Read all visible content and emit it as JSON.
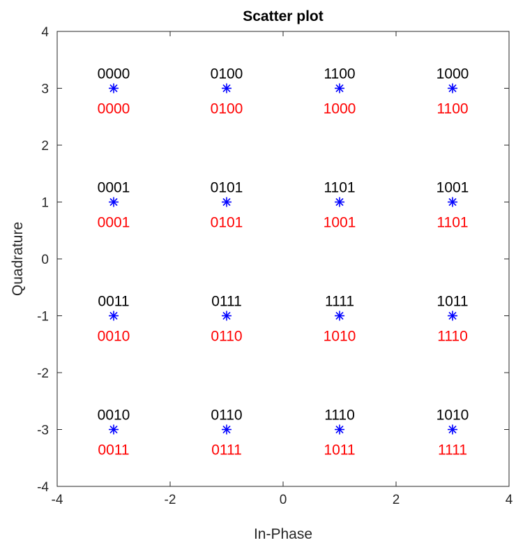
{
  "chart_data": {
    "type": "scatter",
    "title": "Scatter plot",
    "xlabel": "In-Phase",
    "ylabel": "Quadrature",
    "xlim": [
      -4,
      4
    ],
    "ylim": [
      -4,
      4
    ],
    "xticks": [
      "-4",
      "-2",
      "0",
      "2",
      "4"
    ],
    "yticks": [
      "-4",
      "-3",
      "-2",
      "-1",
      "0",
      "1",
      "2",
      "3",
      "4"
    ],
    "xtick_values": [
      -4,
      -2,
      0,
      2,
      4
    ],
    "ytick_values": [
      -4,
      -3,
      -2,
      -1,
      0,
      1,
      2,
      3,
      4
    ],
    "grid": false,
    "marker": "asterisk",
    "marker_color": "#0000ff",
    "label_above_color": "#000000",
    "label_below_color": "#ff0000",
    "points": [
      {
        "x": -3,
        "y": 3,
        "above": "0000",
        "below": "0000"
      },
      {
        "x": -1,
        "y": 3,
        "above": "0100",
        "below": "0100"
      },
      {
        "x": 1,
        "y": 3,
        "above": "1100",
        "below": "1000"
      },
      {
        "x": 3,
        "y": 3,
        "above": "1000",
        "below": "1100"
      },
      {
        "x": -3,
        "y": 1,
        "above": "0001",
        "below": "0001"
      },
      {
        "x": -1,
        "y": 1,
        "above": "0101",
        "below": "0101"
      },
      {
        "x": 1,
        "y": 1,
        "above": "1101",
        "below": "1001"
      },
      {
        "x": 3,
        "y": 1,
        "above": "1001",
        "below": "1101"
      },
      {
        "x": -3,
        "y": -1,
        "above": "0011",
        "below": "0010"
      },
      {
        "x": -1,
        "y": -1,
        "above": "0111",
        "below": "0110"
      },
      {
        "x": 1,
        "y": -1,
        "above": "1111",
        "below": "1010"
      },
      {
        "x": 3,
        "y": -1,
        "above": "1011",
        "below": "1110"
      },
      {
        "x": -3,
        "y": -3,
        "above": "0010",
        "below": "0011"
      },
      {
        "x": -1,
        "y": -3,
        "above": "0110",
        "below": "0111"
      },
      {
        "x": 1,
        "y": -3,
        "above": "1110",
        "below": "1011"
      },
      {
        "x": 3,
        "y": -3,
        "above": "1010",
        "below": "1111"
      }
    ]
  }
}
